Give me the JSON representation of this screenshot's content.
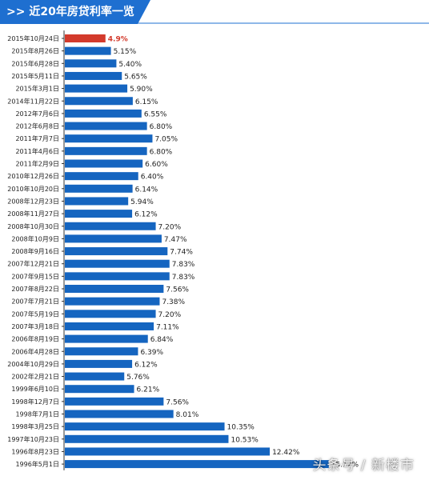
{
  "header": {
    "title": ">> 近20年房贷利率一览",
    "color": "#1e6fd0"
  },
  "watermark": "头条号 / 新楼市",
  "colors": {
    "bar": "#1565c0",
    "highlight_bar": "#d33a2c",
    "highlight_text": "#d33a2c",
    "text": "#222222",
    "axis": "#333333"
  },
  "chart_data": {
    "type": "bar",
    "orientation": "horizontal",
    "highlight_index": 0,
    "categories": [
      "2015年10月24日",
      "2015年8月26日",
      "2015年6月28日",
      "2015年5月11日",
      "2015年3月1日",
      "2014年11月22日",
      "2012年7月6日",
      "2012年6月8日",
      "2011年7月7日",
      "2011年4月6日",
      "2011年2月9日",
      "2010年12月26日",
      "2010年10月20日",
      "2008年12月23日",
      "2008年11月27日",
      "2008年10月30日",
      "2008年10月9日",
      "2008年9月16日",
      "2007年12月21日",
      "2007年9月15日",
      "2007年8月22日",
      "2007年7月21日",
      "2007年5月19日",
      "2007年3月18日",
      "2006年8月19日",
      "2006年4月28日",
      "2004年10月29日",
      "2002年2月21日",
      "1999年6月10日",
      "1998年12月7日",
      "1998年7月1日",
      "1998年3月25日",
      "1997年10月23日",
      "1996年8月23日",
      "1996年5月1日"
    ],
    "values": [
      4.9,
      5.15,
      5.4,
      5.65,
      5.9,
      6.15,
      6.55,
      6.8,
      7.05,
      6.8,
      6.6,
      6.4,
      6.14,
      5.94,
      6.12,
      7.2,
      7.47,
      7.74,
      7.83,
      7.83,
      7.56,
      7.38,
      7.2,
      7.11,
      6.84,
      6.39,
      6.12,
      5.76,
      6.21,
      7.56,
      8.01,
      10.35,
      10.53,
      12.42,
      15.12
    ],
    "labels": [
      "4.9%",
      "5.15%",
      "5.40%",
      "5.65%",
      "5.90%",
      "6.15%",
      "6.55%",
      "6.80%",
      "7.05%",
      "6.80%",
      "6.60%",
      "6.40%",
      "6.14%",
      "5.94%",
      "6.12%",
      "7.20%",
      "7.47%",
      "7.74%",
      "7.83%",
      "7.83%",
      "7.56%",
      "7.38%",
      "7.20%",
      "7.11%",
      "6.84%",
      "6.39%",
      "6.12%",
      "5.76%",
      "6.21%",
      "7.56%",
      "8.01%",
      "10.35%",
      "10.53%",
      "12.42%",
      "15.12%"
    ],
    "title": "近20年房贷利率一览",
    "xlabel": "",
    "ylabel": "",
    "grid": false
  }
}
